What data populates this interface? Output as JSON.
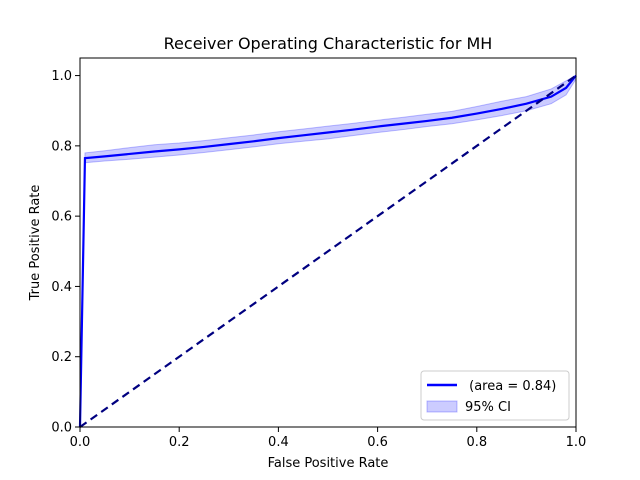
{
  "chart_data": {
    "type": "line",
    "title": "Receiver Operating Characteristic for MH",
    "xlabel": "False Positive Rate",
    "ylabel": "True Positive Rate",
    "xlim": [
      0.0,
      1.0
    ],
    "ylim": [
      0.0,
      1.05
    ],
    "xticks": [
      0.0,
      0.2,
      0.4,
      0.6,
      0.8,
      1.0
    ],
    "yticks": [
      0.0,
      0.2,
      0.4,
      0.6,
      0.8,
      1.0
    ],
    "xtick_labels": [
      "0.0",
      "0.2",
      "0.4",
      "0.6",
      "0.8",
      "1.0"
    ],
    "ytick_labels": [
      "0.0",
      "0.2",
      "0.4",
      "0.6",
      "0.8",
      "1.0"
    ],
    "grid": false,
    "legend_position": "bottom-right",
    "series": [
      {
        "name": " (area = 0.84)",
        "style": "solid",
        "color": "#0000ff",
        "x": [
          0.0,
          0.01,
          0.05,
          0.1,
          0.15,
          0.2,
          0.25,
          0.3,
          0.35,
          0.4,
          0.45,
          0.5,
          0.55,
          0.6,
          0.65,
          0.7,
          0.75,
          0.8,
          0.85,
          0.9,
          0.95,
          0.98,
          1.0
        ],
        "y": [
          0.0,
          0.765,
          0.77,
          0.777,
          0.784,
          0.79,
          0.797,
          0.805,
          0.813,
          0.822,
          0.83,
          0.838,
          0.846,
          0.855,
          0.863,
          0.871,
          0.88,
          0.892,
          0.905,
          0.92,
          0.94,
          0.965,
          1.0
        ]
      },
      {
        "name": "",
        "style": "dashed",
        "color": "#000080",
        "x": [
          0.0,
          1.0
        ],
        "y": [
          0.0,
          1.0
        ]
      }
    ],
    "ci_band": {
      "name": "95% CI",
      "color": "#0000ff",
      "x": [
        0.0,
        0.01,
        0.05,
        0.1,
        0.15,
        0.2,
        0.25,
        0.3,
        0.35,
        0.4,
        0.45,
        0.5,
        0.55,
        0.6,
        0.65,
        0.7,
        0.75,
        0.8,
        0.85,
        0.9,
        0.95,
        0.98,
        1.0
      ],
      "lower": [
        0.0,
        0.752,
        0.757,
        0.762,
        0.768,
        0.774,
        0.781,
        0.789,
        0.797,
        0.806,
        0.813,
        0.82,
        0.829,
        0.838,
        0.846,
        0.855,
        0.863,
        0.874,
        0.886,
        0.9,
        0.92,
        0.945,
        0.99
      ],
      "upper": [
        0.0,
        0.78,
        0.786,
        0.795,
        0.803,
        0.808,
        0.815,
        0.823,
        0.831,
        0.84,
        0.848,
        0.856,
        0.864,
        0.873,
        0.881,
        0.89,
        0.898,
        0.912,
        0.927,
        0.94,
        0.962,
        0.985,
        1.0
      ]
    }
  }
}
